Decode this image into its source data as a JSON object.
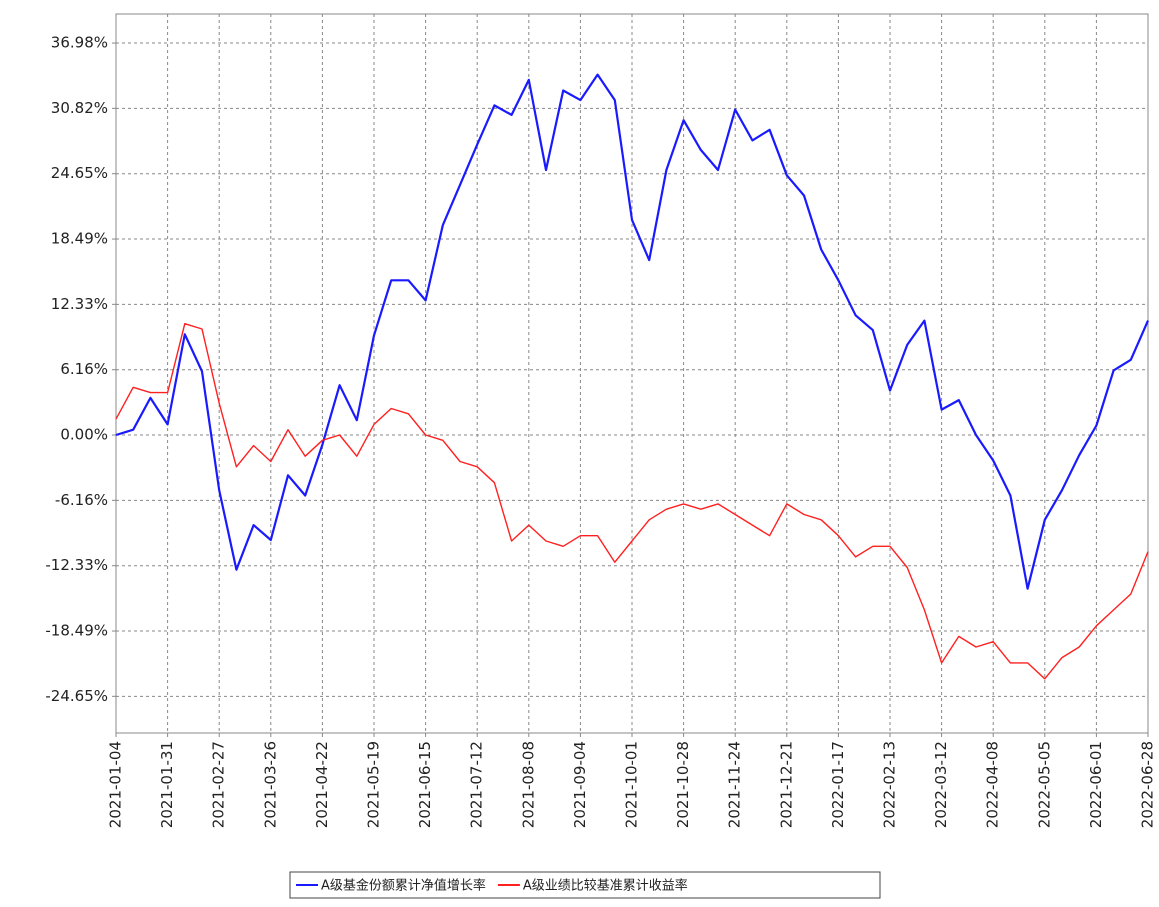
{
  "chart_data": {
    "type": "line",
    "x": [
      "2021-01-04",
      "2021-01-13",
      "2021-01-22",
      "2021-01-31",
      "2021-02-09",
      "2021-02-18",
      "2021-02-27",
      "2021-03-08",
      "2021-03-17",
      "2021-03-26",
      "2021-04-04",
      "2021-04-13",
      "2021-04-22",
      "2021-05-01",
      "2021-05-10",
      "2021-05-19",
      "2021-05-28",
      "2021-06-06",
      "2021-06-15",
      "2021-06-24",
      "2021-07-03",
      "2021-07-12",
      "2021-07-21",
      "2021-07-30",
      "2021-08-08",
      "2021-08-17",
      "2021-08-26",
      "2021-09-04",
      "2021-09-13",
      "2021-09-22",
      "2021-10-01",
      "2021-10-10",
      "2021-10-19",
      "2021-10-28",
      "2021-11-06",
      "2021-11-15",
      "2021-11-24",
      "2021-12-03",
      "2021-12-12",
      "2021-12-21",
      "2021-12-30",
      "2022-01-08",
      "2022-01-17",
      "2022-01-26",
      "2022-02-04",
      "2022-02-13",
      "2022-02-22",
      "2022-03-03",
      "2022-03-12",
      "2022-03-21",
      "2022-03-30",
      "2022-04-08",
      "2022-04-17",
      "2022-04-26",
      "2022-05-05",
      "2022-05-14",
      "2022-05-23",
      "2022-06-01",
      "2022-06-10",
      "2022-06-19",
      "2022-06-28"
    ],
    "series": [
      {
        "name": "A级基金份额累计净值增长率",
        "color": "#1a1aff",
        "values": [
          0,
          0.5,
          3.5,
          1.0,
          9.5,
          6.0,
          -5.2,
          -12.7,
          -8.5,
          -9.9,
          -3.8,
          -5.7,
          -0.9,
          4.7,
          1.4,
          9.4,
          14.6,
          14.6,
          12.7,
          19.8,
          23.6,
          27.4,
          31.1,
          30.2,
          33.5,
          25.0,
          32.5,
          31.6,
          34.0,
          31.6,
          20.3,
          16.5,
          25.0,
          29.7,
          26.9,
          25.0,
          30.7,
          27.8,
          28.8,
          24.5,
          22.6,
          17.5,
          14.6,
          11.3,
          9.9,
          4.2,
          8.5,
          10.8,
          2.4,
          3.3,
          0,
          -2.4,
          -5.7,
          -14.5,
          -8.0,
          -5.2,
          -1.9,
          0.9,
          6.1,
          7.1,
          10.8
        ]
      },
      {
        "name": "A级业绩比较基准累计收益率",
        "color": "#ff2020",
        "values": [
          1.5,
          4.5,
          4.0,
          4.0,
          10.5,
          10.0,
          3.0,
          -3.0,
          -1.0,
          -2.5,
          0.5,
          -2.0,
          -0.5,
          0,
          -2.0,
          1.0,
          2.5,
          2.0,
          0,
          -0.5,
          -2.5,
          -3.0,
          -4.5,
          -10.0,
          -8.5,
          -10.0,
          -10.5,
          -9.5,
          -9.5,
          -12.0,
          -10.0,
          -8.0,
          -7.0,
          -6.5,
          -7.0,
          -6.5,
          -7.5,
          -8.5,
          -9.5,
          -6.5,
          -7.5,
          -8.0,
          -9.5,
          -11.5,
          -10.5,
          -10.5,
          -12.5,
          -16.5,
          -21.5,
          -19.0,
          -20.0,
          -19.5,
          -21.5,
          -21.5,
          -23.0,
          -21.0,
          -20.0,
          -18.0,
          -16.5,
          -15.0,
          -11.0
        ]
      }
    ],
    "xlim": [
      "2021-01-04",
      "2022-06-28"
    ],
    "xticks": [
      "2021-01-04",
      "2021-01-31",
      "2021-02-27",
      "2021-03-26",
      "2021-04-22",
      "2021-05-19",
      "2021-06-15",
      "2021-07-12",
      "2021-08-08",
      "2021-09-04",
      "2021-10-01",
      "2021-10-28",
      "2021-11-24",
      "2021-12-21",
      "2022-01-17",
      "2022-02-13",
      "2022-03-12",
      "2022-04-08",
      "2022-05-05",
      "2022-06-01",
      "2022-06-28"
    ],
    "ylim": [
      -28.11,
      39.72
    ],
    "yticks": [
      {
        "value": 36.98,
        "label": "36.98%"
      },
      {
        "value": 30.82,
        "label": "30.82%"
      },
      {
        "value": 24.65,
        "label": "24.65%"
      },
      {
        "value": 18.49,
        "label": "18.49%"
      },
      {
        "value": 12.33,
        "label": "12.33%"
      },
      {
        "value": 6.16,
        "label": "6.16%"
      },
      {
        "value": 0,
        "label": "0.00%"
      },
      {
        "value": -6.16,
        "label": "-6.16%"
      },
      {
        "value": -12.33,
        "label": "-12.33%"
      },
      {
        "value": -18.49,
        "label": "-18.49%"
      },
      {
        "value": -24.65,
        "label": "-24.65%"
      }
    ],
    "grid": true
  }
}
